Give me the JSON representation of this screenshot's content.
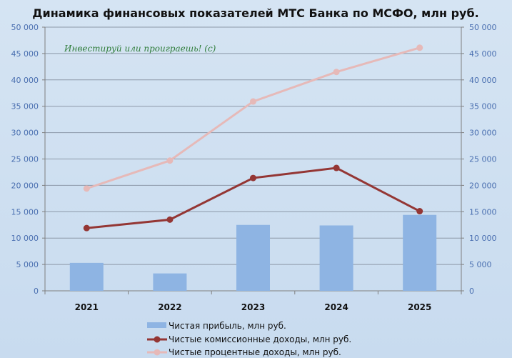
{
  "watermark": "Инвестируй или проиграешь! (с)",
  "chart_data": {
    "type": "bar+line",
    "title": "Динамика финансовых показателей МТС Банка по МСФО, млн руб.",
    "categories": [
      "2021",
      "2022",
      "2023",
      "2024",
      "2025"
    ],
    "ylim": [
      0,
      50000
    ],
    "y_ticks": [
      "0",
      "5 000",
      "10 000",
      "15 000",
      "20 000",
      "25 000",
      "30 000",
      "35 000",
      "40 000",
      "45 000",
      "50 000"
    ],
    "grid": true,
    "dual_axis": true,
    "legend_position": "bottom",
    "series": [
      {
        "name": "Чистая прибыль, млн руб.",
        "type": "bar",
        "color": "#8eb4e3",
        "values": [
          5300,
          3300,
          12500,
          12400,
          14400
        ]
      },
      {
        "name": "Чистые комиссионные доходы, млн руб.",
        "type": "line",
        "color": "#943634",
        "values": [
          11900,
          13500,
          21400,
          23300,
          15100
        ]
      },
      {
        "name": "Чистые процентные доходы, млн руб.",
        "type": "line",
        "color": "#e6b9b8",
        "values": [
          19400,
          24700,
          35900,
          41500,
          46100
        ]
      }
    ]
  }
}
